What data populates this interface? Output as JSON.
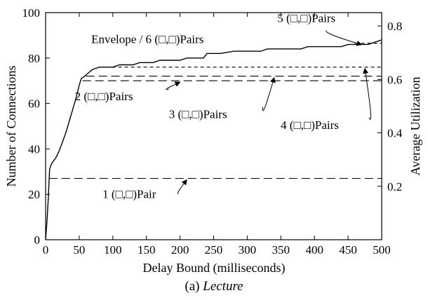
{
  "chart_data": {
    "type": "line",
    "title": "",
    "caption_prefix": "(a) ",
    "caption_name": "Lecture",
    "xlabel": "Delay Bound (milliseconds)",
    "ylabel": "Number of Connections",
    "y2label": "Average Utilization",
    "xlim": [
      0,
      500
    ],
    "ylim": [
      0,
      100
    ],
    "y2lim": [
      0,
      0.85
    ],
    "xticks": [
      0,
      50,
      100,
      150,
      200,
      250,
      300,
      350,
      400,
      450,
      500
    ],
    "yticks": [
      0,
      20,
      40,
      60,
      80,
      100
    ],
    "y2ticks": [
      0.2,
      0.4,
      0.6,
      0.8
    ],
    "grid": false,
    "series": [
      {
        "name": "Envelope / 6 (□,□)Pairs",
        "style": "solid",
        "points": [
          [
            0,
            0
          ],
          [
            2,
            8
          ],
          [
            4,
            18
          ],
          [
            6,
            31
          ],
          [
            8,
            33
          ],
          [
            10,
            34
          ],
          [
            15,
            36
          ],
          [
            20,
            39
          ],
          [
            25,
            43
          ],
          [
            30,
            47
          ],
          [
            35,
            52
          ],
          [
            40,
            57
          ],
          [
            45,
            62
          ],
          [
            50,
            68
          ],
          [
            53,
            71
          ],
          [
            58,
            72
          ],
          [
            62,
            73
          ],
          [
            66,
            74
          ],
          [
            70,
            75
          ],
          [
            80,
            76
          ],
          [
            100,
            76
          ],
          [
            110,
            77
          ],
          [
            130,
            77
          ],
          [
            140,
            78
          ],
          [
            160,
            78
          ],
          [
            170,
            79
          ],
          [
            200,
            79
          ],
          [
            210,
            80
          ],
          [
            235,
            80
          ],
          [
            240,
            82
          ],
          [
            260,
            82
          ],
          [
            280,
            83
          ],
          [
            320,
            83
          ],
          [
            330,
            84
          ],
          [
            380,
            84
          ],
          [
            390,
            85
          ],
          [
            440,
            85
          ],
          [
            450,
            86
          ],
          [
            480,
            86
          ],
          [
            490,
            87
          ],
          [
            500,
            88
          ]
        ]
      },
      {
        "name": "1 (□,□)Pair",
        "style": "dashed",
        "points": [
          [
            5,
            27
          ],
          [
            500,
            27
          ]
        ]
      },
      {
        "name": "2 (□,□)Pairs",
        "style": "dashed",
        "points": [
          [
            55,
            70
          ],
          [
            500,
            70
          ]
        ]
      },
      {
        "name": "3 (□,□)Pairs",
        "style": "dashed",
        "points": [
          [
            60,
            72
          ],
          [
            500,
            72
          ]
        ]
      },
      {
        "name": "4 (□,□)Pairs",
        "style": "dashed-fine",
        "points": [
          [
            80,
            76
          ],
          [
            500,
            76
          ]
        ]
      },
      {
        "name": "5 (□,□)Pairs",
        "style": "dashed-fine",
        "points": [
          [
            460,
            86.5
          ],
          [
            500,
            86.5
          ]
        ]
      }
    ],
    "annotations": [
      {
        "label": "Envelope / 6 (□,□)Pairs",
        "at": [
          235,
          81
        ]
      },
      {
        "label": "5 (□,□)Pairs",
        "at": [
          470,
          86.5
        ]
      },
      {
        "label": "2 (□,□)Pairs",
        "at": [
          200,
          70
        ]
      },
      {
        "label": "3 (□,□)Pairs",
        "at": [
          340,
          72
        ]
      },
      {
        "label": "4 (□,□)Pairs",
        "at": [
          475,
          76
        ]
      },
      {
        "label": "1 (□,□)Pair",
        "at": [
          210,
          27
        ]
      }
    ]
  }
}
